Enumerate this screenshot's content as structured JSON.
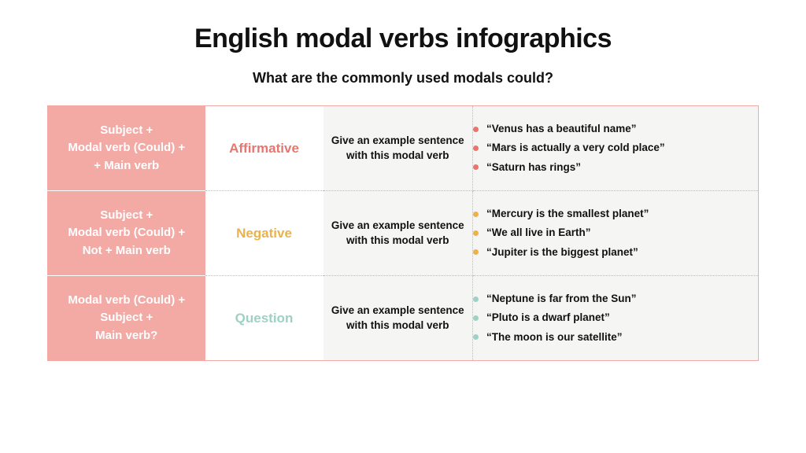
{
  "title": "English modal verbs infographics",
  "subtitle": "What are the commonly used modals could?",
  "prompt_text": "Give an example sentence with this modal verb",
  "colors": {
    "structure_bg": "#f3a9a4",
    "structure_text": "#ffffff",
    "cell_bg": "#f5f5f3",
    "border": "#f3a9a4",
    "affirmative": "#e9766e",
    "negative": "#eab24a",
    "question": "#9dd1c4"
  },
  "rows": [
    {
      "structure": "Subject +\nModal verb (Could) +\n+ Main verb",
      "type_label": "Affirmative",
      "type_color": "#e9766e",
      "bullet_color": "#e9766e",
      "examples": [
        "“Venus has a beautiful name”",
        "“Mars is actually a very cold place”",
        "“Saturn has rings”"
      ]
    },
    {
      "structure": "Subject +\nModal verb (Could) +\nNot + Main verb",
      "type_label": "Negative",
      "type_color": "#eab24a",
      "bullet_color": "#eab24a",
      "examples": [
        "“Mercury is the smallest planet”",
        "“We all live in Earth”",
        "“Jupiter is the biggest planet”"
      ]
    },
    {
      "structure": "Modal verb (Could) +\nSubject +\nMain verb?",
      "type_label": "Question",
      "type_color": "#9dd1c4",
      "bullet_color": "#9dd1c4",
      "examples": [
        "“Neptune is far from the Sun”",
        "“Pluto is a dwarf planet”",
        "“The moon is our satellite”"
      ]
    }
  ]
}
